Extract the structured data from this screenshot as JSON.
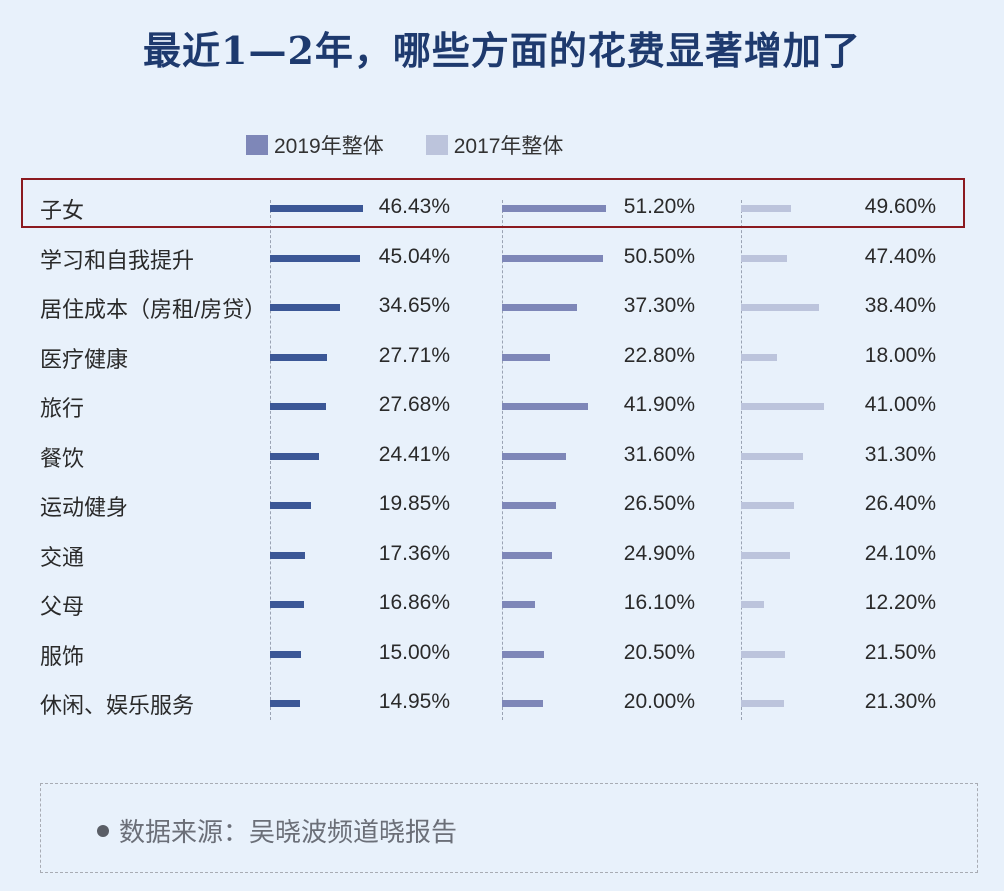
{
  "title": "最近1—2年，哪些方面的花费显著增加了",
  "legend": [
    {
      "label": "2019年整体",
      "color": "#7e87b8"
    },
    {
      "label": "2017年整体",
      "color": "#bcc4dc"
    }
  ],
  "highlighted_row": "子女",
  "source": "数据来源：吴晓波频道晓报告",
  "chart_data": {
    "type": "bar",
    "orientation": "horizontal",
    "title": "最近1—2年，哪些方面的花费显著增加了",
    "categories": [
      "子女",
      "学习和自我提升",
      "居住成本（房租/房贷）",
      "医疗健康",
      "旅行",
      "餐饮",
      "运动健身",
      "交通",
      "父母",
      "服饰",
      "休闲、娱乐服务"
    ],
    "series": [
      {
        "name": "",
        "color": "#3b5796",
        "values": [
          46.43,
          45.04,
          34.65,
          27.71,
          27.68,
          24.41,
          19.85,
          17.36,
          16.86,
          15.0,
          14.95
        ]
      },
      {
        "name": "2019年整体",
        "color": "#7e87b8",
        "values": [
          51.2,
          50.5,
          37.3,
          22.8,
          41.9,
          31.6,
          26.5,
          24.9,
          16.1,
          20.5,
          20.0
        ]
      },
      {
        "name": "2017年整体",
        "color": "#bcc4dc",
        "values": [
          49.6,
          47.4,
          38.4,
          18.0,
          41.0,
          31.3,
          26.4,
          24.1,
          12.2,
          21.5,
          21.3
        ]
      }
    ],
    "unit": "%",
    "legend_position": "top",
    "grid": false
  },
  "rows": [
    {
      "label": "子女",
      "v1": "46.43%",
      "v2": "51.20%",
      "v3": "49.60%",
      "w1": 93,
      "w2": 104,
      "w3": 50
    },
    {
      "label": "学习和自我提升",
      "v1": "45.04%",
      "v2": "50.50%",
      "v3": "47.40%",
      "w1": 90,
      "w2": 101,
      "w3": 46
    },
    {
      "label": "居住成本（房租/房贷）",
      "v1": "34.65%",
      "v2": "37.30%",
      "v3": "38.40%",
      "w1": 70,
      "w2": 75,
      "w3": 78
    },
    {
      "label": "医疗健康",
      "v1": "27.71%",
      "v2": "22.80%",
      "v3": "18.00%",
      "w1": 57,
      "w2": 48,
      "w3": 36
    },
    {
      "label": "旅行",
      "v1": "27.68%",
      "v2": "41.90%",
      "v3": "41.00%",
      "w1": 56,
      "w2": 86,
      "w3": 83
    },
    {
      "label": "餐饮",
      "v1": "24.41%",
      "v2": "31.60%",
      "v3": "31.30%",
      "w1": 49,
      "w2": 64,
      "w3": 62
    },
    {
      "label": "运动健身",
      "v1": "19.85%",
      "v2": "26.50%",
      "v3": "26.40%",
      "w1": 41,
      "w2": 54,
      "w3": 53
    },
    {
      "label": "交通",
      "v1": "17.36%",
      "v2": "24.90%",
      "v3": "24.10%",
      "w1": 35,
      "w2": 50,
      "w3": 49
    },
    {
      "label": "父母",
      "v1": "16.86%",
      "v2": "16.10%",
      "v3": "12.20%",
      "w1": 34,
      "w2": 33,
      "w3": 23
    },
    {
      "label": "服饰",
      "v1": "15.00%",
      "v2": "20.50%",
      "v3": "21.50%",
      "w1": 31,
      "w2": 42,
      "w3": 44
    },
    {
      "label": "休闲、娱乐服务",
      "v1": "14.95%",
      "v2": "20.00%",
      "v3": "21.30%",
      "w1": 30,
      "w2": 41,
      "w3": 43
    }
  ]
}
